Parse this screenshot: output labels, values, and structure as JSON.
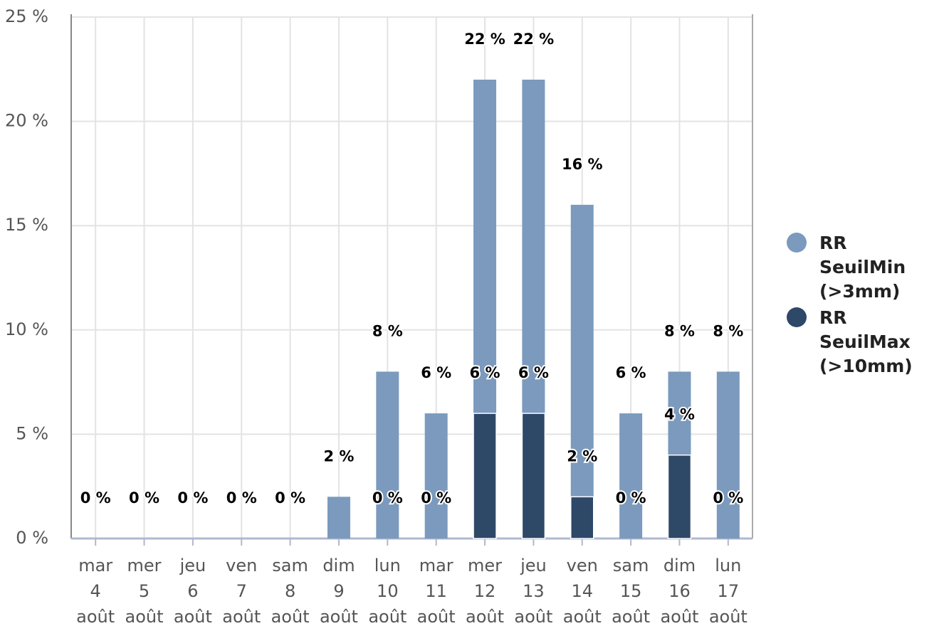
{
  "chart_data": {
    "type": "bar",
    "overlap": true,
    "categories": [
      [
        "mar",
        "4",
        "août"
      ],
      [
        "mer",
        "5",
        "août"
      ],
      [
        "jeu",
        "6",
        "août"
      ],
      [
        "ven",
        "7",
        "août"
      ],
      [
        "sam",
        "8",
        "août"
      ],
      [
        "dim",
        "9",
        "août"
      ],
      [
        "lun",
        "10",
        "août"
      ],
      [
        "mar",
        "11",
        "août"
      ],
      [
        "mer",
        "12",
        "août"
      ],
      [
        "jeu",
        "13",
        "août"
      ],
      [
        "ven",
        "14",
        "août"
      ],
      [
        "sam",
        "15",
        "août"
      ],
      [
        "dim",
        "16",
        "août"
      ],
      [
        "lun",
        "17",
        "août"
      ]
    ],
    "series": [
      {
        "name": "RR SeuilMin (>3mm)",
        "color": "#7b9abd",
        "values": [
          0,
          0,
          0,
          0,
          0,
          2,
          8,
          6,
          22,
          22,
          16,
          6,
          8,
          8
        ],
        "value_labels": [
          "0 %",
          "0 %",
          "0 %",
          "0 %",
          "0 %",
          "2 %",
          "8 %",
          "6 %",
          "22 %",
          "22 %",
          "16 %",
          "6 %",
          "8 %",
          "8 %"
        ]
      },
      {
        "name": "RR SeuilMax (>10mm)",
        "color": "#2e4868",
        "values": [
          0,
          0,
          0,
          0,
          0,
          null,
          0,
          0,
          6,
          6,
          2,
          0,
          4,
          0
        ],
        "value_labels": [
          null,
          null,
          null,
          null,
          null,
          null,
          "0 %",
          "0 %",
          "6 %",
          "6 %",
          "2 %",
          "0 %",
          "4 %",
          "0 %"
        ]
      }
    ],
    "ylim": [
      0,
      25
    ],
    "yticks": [
      {
        "value": 0,
        "label": "0 %"
      },
      {
        "value": 5,
        "label": "5 %"
      },
      {
        "value": 10,
        "label": "10 %"
      },
      {
        "value": 15,
        "label": "15 %"
      },
      {
        "value": 20,
        "label": "20 %"
      },
      {
        "value": 25,
        "label": "25 %"
      }
    ],
    "grid": true
  }
}
